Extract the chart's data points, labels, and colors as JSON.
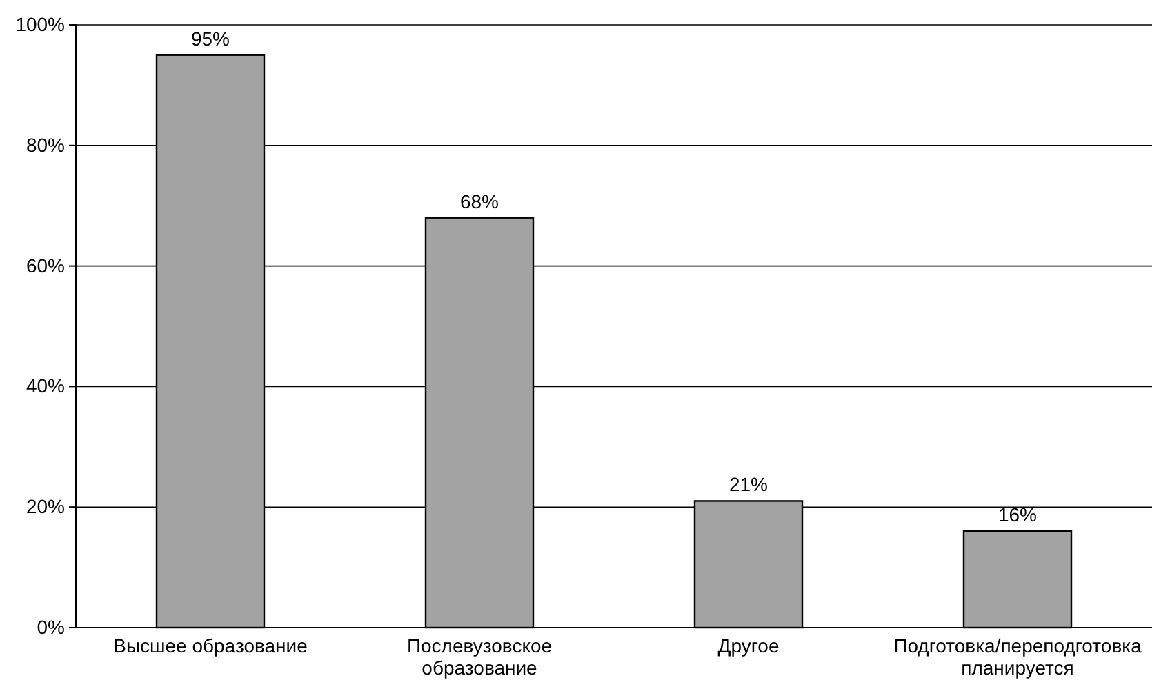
{
  "chart_data": {
    "type": "bar",
    "categories": [
      "Высшее образование",
      "Послевузовское образование",
      "Другое",
      "Подготовка/переподготовка планируется"
    ],
    "values": [
      95,
      68,
      21,
      16
    ],
    "color": "#a3a3a3",
    "value_labels": [
      "95%",
      "68%",
      "21%",
      "16%"
    ],
    "ylim": [
      0,
      100
    ],
    "yticks": [
      {
        "value": 0,
        "label": "0%"
      },
      {
        "value": 20,
        "label": "20%"
      },
      {
        "value": 40,
        "label": "40%"
      },
      {
        "value": 60,
        "label": "60%"
      },
      {
        "value": 80,
        "label": "80%"
      },
      {
        "value": 100,
        "label": "100%"
      }
    ],
    "grid": "y"
  }
}
